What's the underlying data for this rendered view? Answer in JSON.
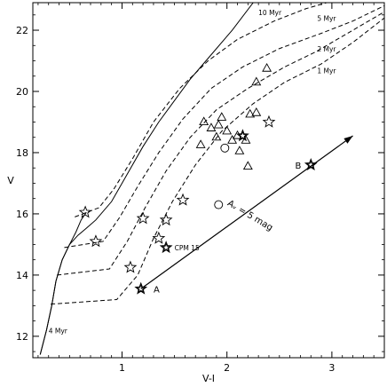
{
  "chart_data": {
    "type": "scatter",
    "xlabel": "V-I",
    "ylabel": "V",
    "xlim": [
      0.15,
      3.5
    ],
    "ylim": [
      22.9,
      11.3
    ],
    "y_inverted": true,
    "x_ticks": [
      1,
      2,
      3
    ],
    "y_ticks": [
      12,
      14,
      16,
      18,
      20,
      22
    ],
    "x_tick_labels": [
      "1",
      "2",
      "3"
    ],
    "y_tick_labels": [
      "12",
      "14",
      "16",
      "18",
      "20",
      "22"
    ],
    "grid": false,
    "legend": "none",
    "isochrones": [
      {
        "label": "4 Myr",
        "style": "solid",
        "points": [
          [
            0.22,
            11.4
          ],
          [
            0.28,
            12.2
          ],
          [
            0.33,
            13.0
          ],
          [
            0.37,
            13.8
          ],
          [
            0.43,
            14.5
          ],
          [
            0.5,
            15.0
          ],
          [
            0.56,
            15.4
          ],
          [
            0.61,
            15.8
          ],
          [
            0.66,
            16.05
          ]
        ]
      },
      {
        "label": "10 Myr",
        "style": "solid",
        "points": [
          [
            0.22,
            11.4
          ],
          [
            0.28,
            12.2
          ],
          [
            0.33,
            13.0
          ],
          [
            0.37,
            13.8
          ],
          [
            0.43,
            14.5
          ],
          [
            0.5,
            15.0
          ],
          [
            0.58,
            15.3
          ],
          [
            0.65,
            15.5
          ],
          [
            0.75,
            15.8
          ],
          [
            0.9,
            16.4
          ],
          [
            1.05,
            17.3
          ],
          [
            1.2,
            18.2
          ],
          [
            1.35,
            19.0
          ],
          [
            1.5,
            19.7
          ],
          [
            1.65,
            20.4
          ],
          [
            1.85,
            21.2
          ],
          [
            2.05,
            22.0
          ],
          [
            2.25,
            22.9
          ]
        ]
      },
      {
        "label": "",
        "style": "dashed",
        "points": [
          [
            0.32,
            13.05
          ],
          [
            0.95,
            13.2
          ],
          [
            1.15,
            14.0
          ],
          [
            1.3,
            15.2
          ],
          [
            1.48,
            16.4
          ],
          [
            1.7,
            17.6
          ],
          [
            1.95,
            18.7
          ],
          [
            2.25,
            19.6
          ],
          [
            2.55,
            20.3
          ],
          [
            2.9,
            20.9
          ],
          [
            3.2,
            21.6
          ],
          [
            3.5,
            22.4
          ]
        ]
      },
      {
        "label": "1 Myr",
        "style": "dashed",
        "points": [
          [
            0.38,
            14.0
          ],
          [
            0.88,
            14.2
          ],
          [
            1.05,
            15.1
          ],
          [
            1.22,
            16.2
          ],
          [
            1.42,
            17.4
          ],
          [
            1.65,
            18.5
          ],
          [
            1.9,
            19.4
          ],
          [
            2.2,
            20.1
          ],
          [
            2.55,
            20.8
          ],
          [
            2.85,
            21.3
          ],
          [
            3.15,
            21.9
          ],
          [
            3.5,
            22.6
          ]
        ]
      },
      {
        "label": "2 Myr",
        "style": "dashed",
        "points": [
          [
            0.45,
            14.9
          ],
          [
            0.82,
            15.1
          ],
          [
            0.98,
            15.9
          ],
          [
            1.15,
            16.9
          ],
          [
            1.35,
            18.0
          ],
          [
            1.58,
            19.1
          ],
          [
            1.85,
            20.1
          ],
          [
            2.15,
            20.8
          ],
          [
            2.5,
            21.4
          ],
          [
            2.9,
            21.9
          ],
          [
            3.2,
            22.3
          ],
          [
            3.5,
            22.8
          ]
        ]
      },
      {
        "label": "5 Myr",
        "style": "dashed",
        "points": [
          [
            0.55,
            15.9
          ],
          [
            0.78,
            16.2
          ],
          [
            0.92,
            16.8
          ],
          [
            1.1,
            17.8
          ],
          [
            1.3,
            19.0
          ],
          [
            1.55,
            20.1
          ],
          [
            1.82,
            21.0
          ],
          [
            2.1,
            21.7
          ],
          [
            2.45,
            22.3
          ],
          [
            2.75,
            22.7
          ],
          [
            2.95,
            22.9
          ]
        ]
      }
    ],
    "isochrone_labels": [
      {
        "text": "4 Myr",
        "x": 0.3,
        "y": 12.1
      },
      {
        "text": "1 Myr",
        "x": 2.86,
        "y": 20.6
      },
      {
        "text": "2 Myr",
        "x": 2.86,
        "y": 21.3
      },
      {
        "text": "5 Myr",
        "x": 2.86,
        "y": 22.3
      },
      {
        "text": "10 Myr",
        "x": 2.3,
        "y": 22.5
      }
    ],
    "series": [
      {
        "name": "",
        "marker": "star",
        "points": [
          [
            0.65,
            16.05
          ],
          [
            0.75,
            15.1
          ],
          [
            1.08,
            14.25
          ],
          [
            1.2,
            15.85
          ],
          [
            1.35,
            15.2
          ],
          [
            1.42,
            15.8
          ],
          [
            1.58,
            16.45
          ],
          [
            2.4,
            19.0
          ]
        ]
      },
      {
        "name": "",
        "marker": "double-star",
        "points": [
          [
            1.18,
            13.55
          ],
          [
            1.42,
            14.9
          ],
          [
            2.8,
            17.6
          ],
          [
            2.15,
            18.55
          ]
        ]
      },
      {
        "name": "",
        "marker": "circle",
        "points": [
          [
            1.92,
            16.3
          ],
          [
            1.98,
            18.15
          ]
        ]
      },
      {
        "name": "",
        "marker": "triangle",
        "points": [
          [
            1.75,
            18.25
          ],
          [
            1.78,
            19.0
          ],
          [
            1.85,
            18.8
          ],
          [
            1.9,
            18.5
          ],
          [
            1.92,
            18.9
          ],
          [
            1.95,
            19.15
          ],
          [
            2.0,
            18.7
          ],
          [
            2.05,
            18.4
          ],
          [
            2.1,
            18.55
          ],
          [
            2.12,
            18.05
          ],
          [
            2.18,
            18.4
          ],
          [
            2.2,
            17.55
          ],
          [
            2.22,
            19.25
          ],
          [
            2.28,
            19.3
          ],
          [
            2.28,
            20.3
          ],
          [
            2.38,
            20.75
          ]
        ]
      }
    ],
    "reddening_vector": {
      "from": [
        1.18,
        13.55
      ],
      "to": [
        3.2,
        18.55
      ],
      "label": "Aᵥ = 5 mag",
      "label_pos": [
        2.0,
        16.3
      ],
      "label_rotation_deg": 31
    },
    "annotations": [
      {
        "text": "A",
        "x": 1.3,
        "y": 13.55
      },
      {
        "text": "B",
        "x": 2.65,
        "y": 17.6
      },
      {
        "text": "CPM 15",
        "x": 1.5,
        "y": 14.9
      }
    ]
  }
}
